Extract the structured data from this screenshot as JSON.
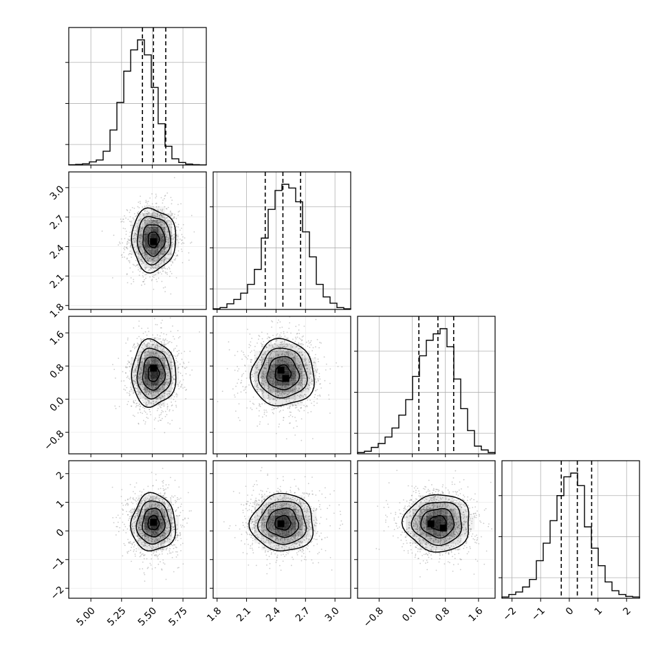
{
  "chart_data": {
    "type": "corner",
    "description_kind": "corner plot of 4 parameters: 1D marginal histograms on diagonal with dashed quantile lines, 2D density (scatter + shaded bins + contours) below diagonal",
    "colors": {
      "hist": "#000000",
      "scatter": "#8c8c8c",
      "grid": "#b0b0b0",
      "density": "#000000"
    },
    "params": [
      {
        "range": [
          4.82,
          5.94
        ],
        "ticks": [
          5.0,
          5.25,
          5.5,
          5.75
        ],
        "tick_labels": [
          "5.00",
          "5.25",
          "5.50",
          "5.75"
        ],
        "center": 5.51,
        "sigma": 0.09,
        "quantiles": [
          5.42,
          5.51,
          5.61
        ],
        "hist": [
          0.002,
          0.005,
          0.01,
          0.025,
          0.04,
          0.11,
          0.28,
          0.5,
          0.75,
          0.92,
          1.0,
          0.88,
          0.62,
          0.33,
          0.15,
          0.05,
          0.02,
          0.008,
          0.003,
          0.001
        ]
      },
      {
        "range": [
          1.76,
          3.16
        ],
        "ticks": [
          1.8,
          2.1,
          2.4,
          2.7,
          3.0
        ],
        "tick_labels": [
          "1.8",
          "2.1",
          "2.4",
          "2.7",
          "3.0"
        ],
        "center": 2.47,
        "sigma": 0.16,
        "quantiles": [
          2.29,
          2.47,
          2.65
        ],
        "hist": [
          0.005,
          0.015,
          0.045,
          0.08,
          0.13,
          0.2,
          0.32,
          0.57,
          0.8,
          0.95,
          1.0,
          0.97,
          0.86,
          0.62,
          0.42,
          0.2,
          0.1,
          0.05,
          0.015,
          0.005
        ]
      },
      {
        "range": [
          -1.32,
          2.0
        ],
        "ticks": [
          -0.8,
          0.0,
          0.8,
          1.6
        ],
        "tick_labels": [
          "−0.8",
          "0.0",
          "0.8",
          "1.6"
        ],
        "center": 0.62,
        "sigma": 0.4,
        "quantiles": [
          0.16,
          0.62,
          1.0
        ],
        "hist": [
          0.01,
          0.02,
          0.05,
          0.08,
          0.13,
          0.2,
          0.3,
          0.42,
          0.6,
          0.76,
          0.88,
          0.93,
          0.97,
          0.83,
          0.58,
          0.35,
          0.18,
          0.06,
          0.03,
          0.01
        ]
      },
      {
        "range": [
          -2.35,
          2.45
        ],
        "ticks": [
          -2,
          -1,
          0,
          1,
          2
        ],
        "tick_labels": [
          "−2",
          "−1",
          "0",
          "1",
          "2"
        ],
        "center": 0.28,
        "sigma": 0.5,
        "quantiles": [
          -0.28,
          0.28,
          0.78
        ],
        "hist": [
          0.01,
          0.03,
          0.05,
          0.09,
          0.15,
          0.3,
          0.44,
          0.62,
          0.82,
          0.97,
          1.0,
          0.9,
          0.57,
          0.4,
          0.26,
          0.13,
          0.06,
          0.03,
          0.015,
          0.01
        ]
      }
    ],
    "modes": {
      "1,0": [
        [
          5.51,
          2.45
        ]
      ],
      "2,0": [
        [
          5.51,
          0.75
        ]
      ],
      "2,1": [
        [
          2.45,
          0.7
        ],
        [
          2.5,
          0.5
        ]
      ],
      "3,0": [
        [
          5.51,
          0.3
        ]
      ],
      "3,1": [
        [
          2.45,
          0.25
        ]
      ],
      "3,2": [
        [
          0.45,
          0.25
        ],
        [
          0.75,
          0.1
        ]
      ]
    }
  }
}
